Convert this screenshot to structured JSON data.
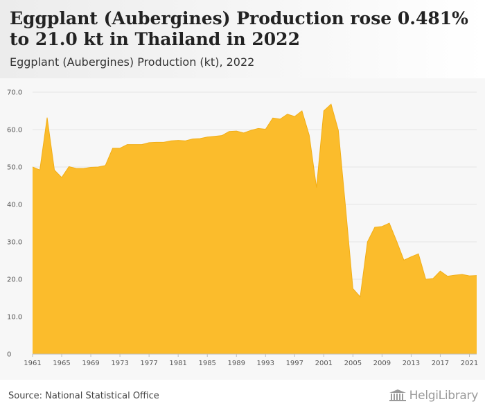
{
  "title": "Eggplant (Aubergines) Production rose 0.481% to 21.0 kt in Thailand in 2022",
  "subtitle": "Eggplant (Aubergines) Production (kt), 2022",
  "source": "Source: National Statistical Office",
  "logo_text": "HelgiLibrary",
  "colors": {
    "fill": "#fbbc2c",
    "edge": "#f2ae16",
    "grid": "#e4e4e4",
    "axis": "#bdbdbd"
  },
  "chart_data": {
    "type": "area",
    "x": [
      1961,
      1962,
      1963,
      1964,
      1965,
      1966,
      1967,
      1968,
      1969,
      1970,
      1971,
      1972,
      1973,
      1974,
      1975,
      1976,
      1977,
      1978,
      1979,
      1980,
      1981,
      1982,
      1983,
      1984,
      1985,
      1986,
      1987,
      1988,
      1989,
      1990,
      1991,
      1992,
      1993,
      1994,
      1995,
      1996,
      1997,
      1998,
      1999,
      2000,
      2001,
      2002,
      2003,
      2004,
      2005,
      2006,
      2007,
      2008,
      2009,
      2010,
      2011,
      2012,
      2013,
      2014,
      2015,
      2016,
      2017,
      2018,
      2019,
      2020,
      2021,
      2022
    ],
    "values": [
      50.0,
      49.2,
      63.2,
      49.2,
      47.2,
      50.1,
      49.6,
      49.6,
      49.9,
      50.0,
      50.4,
      55.0,
      55.0,
      56.0,
      56.0,
      56.0,
      56.5,
      56.6,
      56.6,
      57.0,
      57.1,
      57.0,
      57.5,
      57.6,
      58.0,
      58.2,
      58.4,
      59.5,
      59.6,
      59.1,
      59.8,
      60.3,
      60.1,
      63.1,
      62.8,
      64.1,
      63.5,
      65.0,
      58.5,
      44.5,
      65.0,
      66.8,
      59.8,
      39.0,
      17.5,
      15.3,
      30.0,
      33.9,
      34.1,
      35.0,
      30.2,
      25.1,
      26.0,
      26.8,
      20.0,
      20.2,
      22.2,
      20.8,
      21.1,
      21.3,
      20.9,
      21.0
    ],
    "xlim": [
      1961,
      2022
    ],
    "ylim": [
      0,
      70
    ],
    "x_ticks": [
      1961,
      1965,
      1969,
      1973,
      1977,
      1981,
      1985,
      1989,
      1993,
      1997,
      2001,
      2005,
      2009,
      2013,
      2017,
      2021
    ],
    "y_ticks": [
      0,
      10,
      20,
      30,
      40,
      50,
      60,
      70
    ],
    "y_tick_labels": [
      "0",
      "10.0",
      "20.0",
      "30.0",
      "40.0",
      "50.0",
      "60.0",
      "70.0"
    ],
    "grid": true,
    "xlabel": "",
    "ylabel": ""
  }
}
